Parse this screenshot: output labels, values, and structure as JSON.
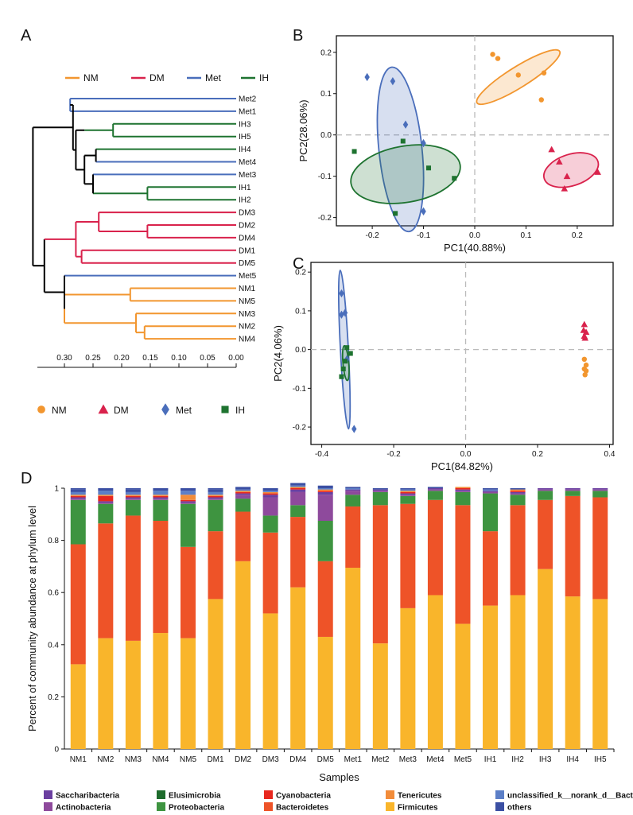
{
  "colors": {
    "NM": "#F2962F",
    "DM": "#D9224C",
    "Met": "#4A6EBB",
    "IH": "#1E7330",
    "root": "#000000"
  },
  "panels": {
    "A": "A",
    "B": "B",
    "C": "C",
    "D": "D"
  },
  "dendrogram": {
    "legend": [
      {
        "group": "NM",
        "label": "NM"
      },
      {
        "group": "DM",
        "label": "DM"
      },
      {
        "group": "Met",
        "label": "Met"
      },
      {
        "group": "IH",
        "label": "IH"
      }
    ],
    "leaves": [
      {
        "label": "Met2",
        "group": "Met",
        "dist": 0.29
      },
      {
        "label": "Met1",
        "group": "Met",
        "dist": 0.29
      },
      {
        "label": "IH3",
        "group": "IH",
        "dist": 0.215
      },
      {
        "label": "IH5",
        "group": "IH",
        "dist": 0.215
      },
      {
        "label": "IH4",
        "group": "IH",
        "dist": 0.245
      },
      {
        "label": "Met4",
        "group": "Met",
        "dist": 0.245
      },
      {
        "label": "Met3",
        "group": "Met",
        "dist": 0.25
      },
      {
        "label": "IH1",
        "group": "IH",
        "dist": 0.155
      },
      {
        "label": "IH2",
        "group": "IH",
        "dist": 0.155
      },
      {
        "label": "DM3",
        "group": "DM",
        "dist": 0.24
      },
      {
        "label": "DM2",
        "group": "DM",
        "dist": 0.155
      },
      {
        "label": "DM4",
        "group": "DM",
        "dist": 0.155
      },
      {
        "label": "DM1",
        "group": "DM",
        "dist": 0.27
      },
      {
        "label": "DM5",
        "group": "DM",
        "dist": 0.27
      },
      {
        "label": "Met5",
        "group": "Met",
        "dist": 0.3
      },
      {
        "label": "NM1",
        "group": "NM",
        "dist": 0.185
      },
      {
        "label": "NM5",
        "group": "NM",
        "dist": 0.185
      },
      {
        "label": "NM3",
        "group": "NM",
        "dist": 0.175
      },
      {
        "label": "NM2",
        "group": "NM",
        "dist": 0.16
      },
      {
        "label": "NM4",
        "group": "NM",
        "dist": 0.16
      }
    ],
    "axis_ticks": [
      "0.30",
      "0.25",
      "0.20",
      "0.15",
      "0.10",
      "0.05",
      "0.00"
    ],
    "shape_legend": [
      {
        "group": "NM",
        "label": "NM",
        "shape": "circle"
      },
      {
        "group": "DM",
        "label": "DM",
        "shape": "triangle"
      },
      {
        "group": "Met",
        "label": "Met",
        "shape": "diamond"
      },
      {
        "group": "IH",
        "label": "IH",
        "shape": "square"
      }
    ]
  },
  "chart_data": [
    {
      "panel": "B",
      "type": "scatter",
      "xlabel": "PC1(40.88%)",
      "ylabel": "PC2(28.06%)",
      "xlim": [
        -0.27,
        0.27
      ],
      "ylim": [
        -0.22,
        0.24
      ],
      "xticks": [
        -0.2,
        -0.1,
        0,
        0.1,
        0.2
      ],
      "xticklabels": [
        "-0.2",
        "-0.1",
        "0.0",
        "0.1",
        "0.2"
      ],
      "yticks": [
        -0.2,
        -0.1,
        0,
        0.1,
        0.2
      ],
      "yticklabels": [
        "-0.2",
        "-0.1",
        "0.0",
        "0.1",
        "0.2"
      ],
      "series": [
        {
          "name": "NM",
          "shape": "circle",
          "points": [
            [
              0.035,
              0.195
            ],
            [
              0.045,
              0.185
            ],
            [
              0.085,
              0.145
            ],
            [
              0.135,
              0.15
            ],
            [
              0.13,
              0.085
            ]
          ],
          "ellipse": {
            "cx": 0.085,
            "cy": 0.14,
            "rx": 0.095,
            "ry": 0.025,
            "angle": -32
          }
        },
        {
          "name": "DM",
          "shape": "triangle",
          "points": [
            [
              0.15,
              -0.035
            ],
            [
              0.165,
              -0.065
            ],
            [
              0.24,
              -0.09
            ],
            [
              0.18,
              -0.1
            ],
            [
              0.175,
              -0.13
            ]
          ],
          "ellipse": {
            "cx": 0.188,
            "cy": -0.085,
            "rx": 0.055,
            "ry": 0.038,
            "angle": -18
          }
        },
        {
          "name": "Met",
          "shape": "diamond",
          "points": [
            [
              -0.21,
              0.14
            ],
            [
              -0.16,
              0.13
            ],
            [
              -0.135,
              0.025
            ],
            [
              -0.1,
              -0.02
            ],
            [
              -0.1,
              -0.185
            ]
          ],
          "ellipse": {
            "cx": -0.145,
            "cy": -0.035,
            "rx": 0.042,
            "ry": 0.2,
            "angle": -6
          }
        },
        {
          "name": "IH",
          "shape": "square",
          "points": [
            [
              -0.235,
              -0.04
            ],
            [
              -0.14,
              -0.015
            ],
            [
              -0.09,
              -0.08
            ],
            [
              -0.04,
              -0.105
            ],
            [
              -0.155,
              -0.19
            ]
          ],
          "ellipse": {
            "cx": -0.135,
            "cy": -0.095,
            "rx": 0.108,
            "ry": 0.068,
            "angle": -10
          }
        }
      ]
    },
    {
      "panel": "C",
      "type": "scatter",
      "xlabel": "PC1(84.82%)",
      "ylabel": "PC2(4.06%)",
      "xlim": [
        -0.43,
        0.41
      ],
      "ylim": [
        -0.245,
        0.225
      ],
      "xticks": [
        -0.4,
        -0.2,
        0,
        0.2,
        0.4
      ],
      "xticklabels": [
        "-0.4",
        "-0.2",
        "0.0",
        "0.2",
        "0.4"
      ],
      "yticks": [
        -0.2,
        -0.1,
        0,
        0.1,
        0.2
      ],
      "yticklabels": [
        "-0.2",
        "-0.1",
        "0.0",
        "0.1",
        "0.2"
      ],
      "series": [
        {
          "name": "NM",
          "shape": "circle",
          "points": [
            [
              0.33,
              -0.025
            ],
            [
              0.335,
              -0.04
            ],
            [
              0.33,
              -0.05
            ],
            [
              0.335,
              -0.055
            ],
            [
              0.332,
              -0.065
            ]
          ]
        },
        {
          "name": "DM",
          "shape": "triangle",
          "points": [
            [
              0.33,
              0.065
            ],
            [
              0.328,
              0.05
            ],
            [
              0.335,
              0.045
            ],
            [
              0.33,
              0.035
            ],
            [
              0.332,
              0.03
            ]
          ]
        },
        {
          "name": "Met",
          "shape": "diamond",
          "points": [
            [
              -0.345,
              0.145
            ],
            [
              -0.335,
              0.095
            ],
            [
              -0.345,
              0.09
            ],
            [
              -0.33,
              -0.025
            ],
            [
              -0.31,
              -0.205
            ]
          ],
          "ellipse": {
            "cx": -0.337,
            "cy": 0.0,
            "rx": 0.011,
            "ry": 0.205,
            "angle": -3
          }
        },
        {
          "name": "IH",
          "shape": "square",
          "points": [
            [
              -0.33,
              0.005
            ],
            [
              -0.32,
              -0.01
            ],
            [
              -0.335,
              -0.03
            ],
            [
              -0.34,
              -0.05
            ],
            [
              -0.345,
              -0.07
            ]
          ],
          "ellipse": {
            "cx": -0.333,
            "cy": -0.035,
            "rx": 0.008,
            "ry": 0.045,
            "angle": -5
          }
        }
      ]
    },
    {
      "panel": "D",
      "type": "bar",
      "stacked": true,
      "xlabel": "Samples",
      "ylabel": "Percent of community abundance at phylum level",
      "ylim": [
        0,
        1
      ],
      "yticks": [
        0,
        0.2,
        0.4,
        0.6,
        0.8,
        1
      ],
      "yticklabels": [
        "0",
        "0.2",
        "0.4",
        "0.6",
        "0.8",
        "1"
      ],
      "categories": [
        "NM1",
        "NM2",
        "NM3",
        "NM4",
        "NM5",
        "DM1",
        "DM2",
        "DM3",
        "DM4",
        "DM5",
        "Met1",
        "Met2",
        "Met3",
        "Met4",
        "Met5",
        "IH1",
        "IH2",
        "IH3",
        "IH4",
        "IH5"
      ],
      "series": [
        {
          "name": "Firmicutes",
          "color": "#F9B52B",
          "values": [
            0.325,
            0.425,
            0.415,
            0.445,
            0.425,
            0.575,
            0.72,
            0.52,
            0.62,
            0.43,
            0.695,
            0.405,
            0.54,
            0.59,
            0.48,
            0.55,
            0.59,
            0.69,
            0.585,
            0.575
          ]
        },
        {
          "name": "Bacteroidetes",
          "color": "#EE5328",
          "values": [
            0.46,
            0.44,
            0.48,
            0.43,
            0.35,
            0.26,
            0.19,
            0.31,
            0.27,
            0.29,
            0.235,
            0.53,
            0.4,
            0.365,
            0.455,
            0.285,
            0.345,
            0.265,
            0.385,
            0.39
          ]
        },
        {
          "name": "Proteobacteria",
          "color": "#3E9440",
          "values": [
            0.17,
            0.075,
            0.06,
            0.08,
            0.165,
            0.12,
            0.05,
            0.065,
            0.045,
            0.155,
            0.045,
            0.05,
            0.03,
            0.035,
            0.05,
            0.145,
            0.04,
            0.035,
            0.02,
            0.025
          ]
        },
        {
          "name": "Actinobacteria",
          "color": "#8E4A9C",
          "values": [
            0.005,
            0.005,
            0.005,
            0.005,
            0.005,
            0.005,
            0.015,
            0.07,
            0.05,
            0.1,
            0.015,
            0.005,
            0.005,
            0.005,
            0.005,
            0.005,
            0.005,
            0.005,
            0.005,
            0.005
          ]
        },
        {
          "name": "Saccharibacteria",
          "color": "#6B3FA0",
          "values": [
            0.005,
            0.005,
            0.005,
            0.005,
            0.005,
            0.005,
            0.005,
            0.01,
            0.01,
            0.01,
            0.005,
            0.005,
            0.005,
            0.005,
            0.005,
            0.005,
            0.005,
            0.005,
            0.005,
            0.005
          ]
        },
        {
          "name": "Cyanobacteria",
          "color": "#E8271E",
          "values": [
            0.005,
            0.02,
            0.005,
            0.005,
            0.005,
            0.005,
            0.005,
            0.005,
            0.005,
            0.005,
            0.0,
            0.0,
            0.005,
            0.0,
            0.005,
            0.0,
            0.005,
            0.0,
            0.0,
            0.0
          ]
        },
        {
          "name": "Tenericutes",
          "color": "#F28C3A",
          "values": [
            0.005,
            0.005,
            0.005,
            0.005,
            0.02,
            0.005,
            0.005,
            0.005,
            0.005,
            0.005,
            0.0,
            0.0,
            0.005,
            0.0,
            0.005,
            0.0,
            0.005,
            0.0,
            0.0,
            0.0
          ]
        },
        {
          "name": "Elusimicrobia",
          "color": "#1E6B2C",
          "values": [
            0.0,
            0.0,
            0.0,
            0.0,
            0.0,
            0.0,
            0.0,
            0.0,
            0.0,
            0.0,
            0.0,
            0.0,
            0.0,
            0.0,
            0.0,
            0.0,
            0.0,
            0.0,
            0.0,
            0.0
          ]
        },
        {
          "name": "unclassified_k__norank_d__Bacteria",
          "color": "#5C7FC7",
          "values": [
            0.01,
            0.015,
            0.01,
            0.015,
            0.015,
            0.01,
            0.005,
            0.005,
            0.005,
            0.005,
            0.005,
            0.0,
            0.005,
            0.0,
            0.0,
            0.005,
            0.0,
            0.0,
            0.0,
            0.0
          ]
        },
        {
          "name": "others",
          "color": "#3B4FA3",
          "values": [
            0.01,
            0.01,
            0.01,
            0.01,
            0.01,
            0.01,
            0.01,
            0.01,
            0.01,
            0.01,
            0.005,
            0.005,
            0.005,
            0.005,
            0.0,
            0.005,
            0.005,
            0.0,
            0.0,
            0.0
          ]
        }
      ]
    }
  ],
  "bar_legend": [
    [
      "Saccharibacteria",
      "Elusimicrobia",
      "Cyanobacteria",
      "Tenericutes",
      "unclassified_k__norank_d__Bacteria"
    ],
    [
      "Actinobacteria",
      "Proteobacteria",
      "Bacteroidetes",
      "Firmicutes",
      "others"
    ]
  ]
}
